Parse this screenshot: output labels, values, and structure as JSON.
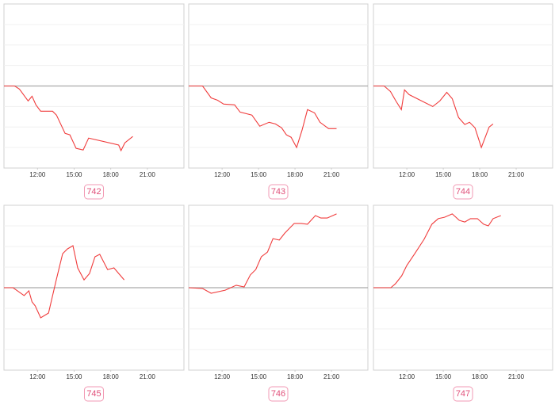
{
  "chart_data": [
    {
      "type": "line",
      "label": "742",
      "color": "#f03c3c",
      "baseline": 0,
      "xlim": [
        9.25,
        24
      ],
      "ylim": [
        -4,
        4
      ],
      "xticks": [
        {
          "value": 12,
          "label": "12:00"
        },
        {
          "value": 15,
          "label": "15:00"
        },
        {
          "value": 18,
          "label": "18:00"
        },
        {
          "value": 21,
          "label": "21:00"
        }
      ],
      "x": [
        9.25,
        10.13,
        10.52,
        11.23,
        11.55,
        11.87,
        12.26,
        13.23,
        13.55,
        14.26,
        14.65,
        15.16,
        15.74,
        16.19,
        18.65,
        18.84,
        19.16,
        19.81
      ],
      "values": [
        0,
        0,
        -0.15,
        -0.73,
        -0.5,
        -0.92,
        -1.23,
        -1.23,
        -1.42,
        -2.31,
        -2.38,
        -3.04,
        -3.12,
        -2.54,
        -2.88,
        -3.15,
        -2.77,
        -2.46
      ]
    },
    {
      "type": "line",
      "label": "743",
      "color": "#f03c3c",
      "baseline": 0,
      "xlim": [
        9.25,
        24
      ],
      "ylim": [
        -4,
        4
      ],
      "xticks": [
        {
          "value": 12,
          "label": "12:00"
        },
        {
          "value": 15,
          "label": "15:00"
        },
        {
          "value": 18,
          "label": "18:00"
        },
        {
          "value": 21,
          "label": "21:00"
        }
      ],
      "x": [
        9.25,
        10.39,
        11.1,
        11.61,
        12.13,
        13.03,
        13.48,
        14.45,
        15.1,
        15.87,
        16.39,
        16.9,
        17.29,
        17.68,
        18.13,
        18.58,
        19.03,
        19.61,
        20.06,
        20.77,
        21.42
      ],
      "values": [
        0,
        0,
        -0.58,
        -0.69,
        -0.88,
        -0.92,
        -1.27,
        -1.42,
        -1.96,
        -1.77,
        -1.85,
        -2.04,
        -2.38,
        -2.5,
        -3.0,
        -2.15,
        -1.15,
        -1.31,
        -1.77,
        -2.08,
        -2.08
      ]
    },
    {
      "type": "line",
      "label": "744",
      "color": "#f03c3c",
      "baseline": 0,
      "xlim": [
        9.25,
        24
      ],
      "ylim": [
        -4,
        4
      ],
      "xticks": [
        {
          "value": 12,
          "label": "12:00"
        },
        {
          "value": 15,
          "label": "15:00"
        },
        {
          "value": 18,
          "label": "18:00"
        },
        {
          "value": 21,
          "label": "21:00"
        }
      ],
      "x": [
        9.25,
        10.13,
        10.65,
        11.1,
        11.55,
        11.81,
        12.19,
        14.13,
        14.71,
        15.29,
        15.74,
        16.26,
        16.77,
        17.16,
        17.61,
        18.13,
        18.77,
        19.1
      ],
      "values": [
        0,
        0,
        -0.27,
        -0.73,
        -1.15,
        -0.19,
        -0.42,
        -1.0,
        -0.73,
        -0.31,
        -0.62,
        -1.54,
        -1.88,
        -1.77,
        -2.04,
        -3.0,
        -2.0,
        -1.85
      ]
    },
    {
      "type": "line",
      "label": "745",
      "color": "#f03c3c",
      "baseline": 0,
      "xlim": [
        9.25,
        24
      ],
      "ylim": [
        -4,
        4
      ],
      "xticks": [
        {
          "value": 12,
          "label": "12:00"
        },
        {
          "value": 15,
          "label": "15:00"
        },
        {
          "value": 18,
          "label": "18:00"
        },
        {
          "value": 21,
          "label": "21:00"
        }
      ],
      "x": [
        9.25,
        10.0,
        10.9,
        11.29,
        11.55,
        11.81,
        12.26,
        12.9,
        13.55,
        14.06,
        14.45,
        14.9,
        15.29,
        15.81,
        16.26,
        16.71,
        17.1,
        17.74,
        18.26,
        19.1
      ],
      "values": [
        0,
        0,
        -0.38,
        -0.15,
        -0.69,
        -0.88,
        -1.46,
        -1.23,
        0.42,
        1.65,
        1.88,
        2.04,
        0.96,
        0.38,
        0.69,
        1.5,
        1.62,
        0.88,
        0.96,
        0.38
      ]
    },
    {
      "type": "line",
      "label": "746",
      "color": "#f03c3c",
      "baseline": 0,
      "xlim": [
        9.25,
        24
      ],
      "ylim": [
        -4,
        4
      ],
      "xticks": [
        {
          "value": 12,
          "label": "12:00"
        },
        {
          "value": 15,
          "label": "15:00"
        },
        {
          "value": 18,
          "label": "18:00"
        },
        {
          "value": 21,
          "label": "21:00"
        }
      ],
      "x": [
        9.25,
        10.39,
        11.1,
        12.26,
        13.16,
        13.81,
        14.32,
        14.77,
        15.23,
        15.74,
        16.19,
        16.71,
        17.16,
        17.94,
        18.52,
        19.03,
        19.68,
        20.13,
        20.65,
        21.42
      ],
      "values": [
        0,
        -0.04,
        -0.27,
        -0.12,
        0.12,
        0.04,
        0.62,
        0.88,
        1.5,
        1.73,
        2.38,
        2.31,
        2.65,
        3.12,
        3.12,
        3.08,
        3.5,
        3.38,
        3.38,
        3.58
      ]
    },
    {
      "type": "line",
      "label": "747",
      "color": "#f03c3c",
      "baseline": 0,
      "xlim": [
        9.25,
        24
      ],
      "ylim": [
        -4,
        4
      ],
      "xticks": [
        {
          "value": 12,
          "label": "12:00"
        },
        {
          "value": 15,
          "label": "15:00"
        },
        {
          "value": 18,
          "label": "18:00"
        },
        {
          "value": 21,
          "label": "21:00"
        }
      ],
      "x": [
        9.25,
        10.68,
        11.06,
        11.58,
        12.0,
        12.65,
        13.42,
        14.06,
        14.58,
        15.1,
        15.74,
        16.32,
        16.77,
        17.23,
        17.81,
        18.32,
        18.71,
        19.1,
        19.74
      ],
      "values": [
        0,
        0,
        0.19,
        0.58,
        1.08,
        1.65,
        2.35,
        3.08,
        3.35,
        3.42,
        3.58,
        3.27,
        3.19,
        3.35,
        3.35,
        3.08,
        3.0,
        3.35,
        3.5
      ]
    }
  ]
}
